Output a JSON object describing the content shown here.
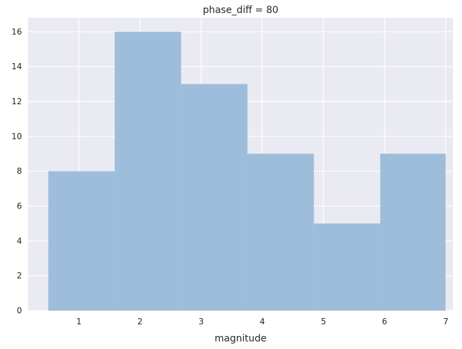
{
  "chart_data": {
    "type": "bar",
    "title": "phase_diff = 80",
    "xlabel": "magnitude",
    "ylabel": "",
    "bins": [
      {
        "x0": 0.5,
        "x1": 1.586,
        "count": 8
      },
      {
        "x0": 1.586,
        "x1": 2.671,
        "count": 16
      },
      {
        "x0": 2.671,
        "x1": 3.757,
        "count": 13
      },
      {
        "x0": 3.757,
        "x1": 4.843,
        "count": 9
      },
      {
        "x0": 4.843,
        "x1": 5.929,
        "count": 5
      },
      {
        "x0": 5.929,
        "x1": 7.0,
        "count": 9
      }
    ],
    "xticks": [
      1,
      2,
      3,
      4,
      5,
      6,
      7
    ],
    "yticks": [
      0,
      2,
      4,
      6,
      8,
      10,
      12,
      14,
      16
    ],
    "xlim": [
      0.17,
      7.12
    ],
    "ylim": [
      0,
      16.8
    ],
    "grid": true,
    "colors": {
      "background": "#eaeaf2",
      "bar": "#9bbcda",
      "grid": "#ffffff",
      "text": "#262626"
    }
  }
}
